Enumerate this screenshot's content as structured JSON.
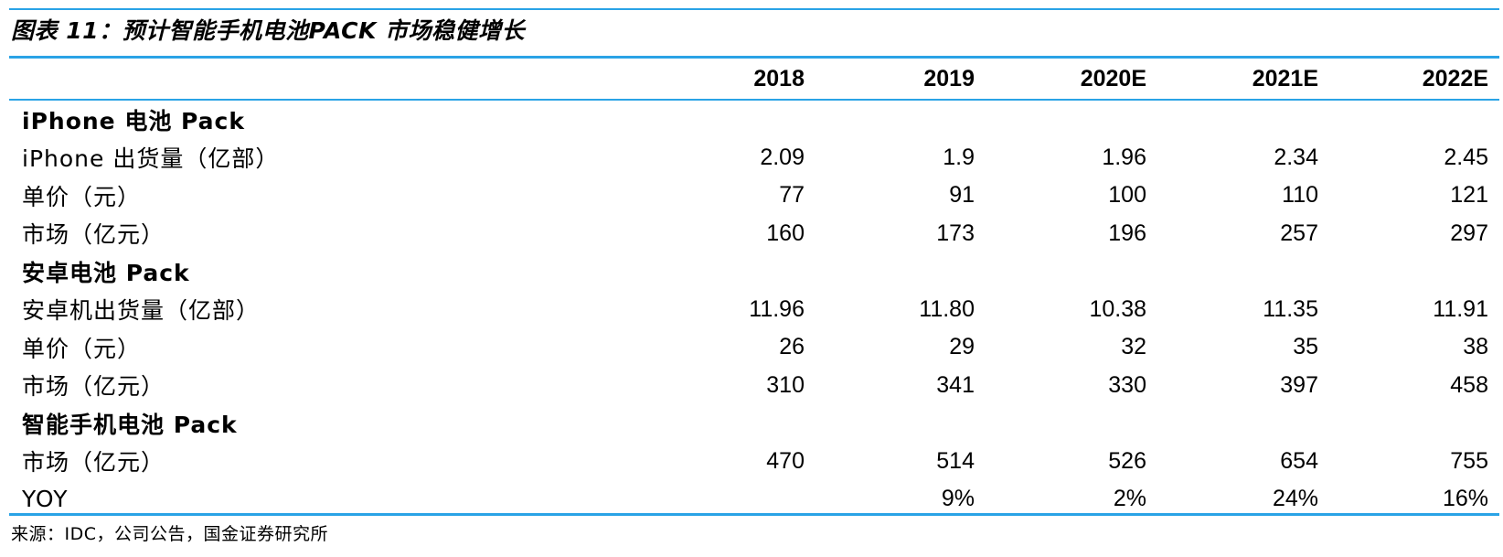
{
  "title": "图表 11：预计智能手机电池PACK 市场稳健增长",
  "table": {
    "columns": [
      "2018",
      "2019",
      "2020E",
      "2021E",
      "2022E"
    ],
    "rows": [
      {
        "type": "section",
        "label": "iPhone 电池 Pack",
        "values": [
          "",
          "",
          "",
          "",
          ""
        ]
      },
      {
        "type": "data",
        "label": "iPhone 出货量（亿部）",
        "values": [
          "2.09",
          "1.9",
          "1.96",
          "2.34",
          "2.45"
        ]
      },
      {
        "type": "data",
        "label": "单价（元）",
        "values": [
          "77",
          "91",
          "100",
          "110",
          "121"
        ]
      },
      {
        "type": "data",
        "label": "市场（亿元）",
        "values": [
          "160",
          "173",
          "196",
          "257",
          "297"
        ]
      },
      {
        "type": "section",
        "label": "安卓电池 Pack",
        "values": [
          "",
          "",
          "",
          "",
          ""
        ]
      },
      {
        "type": "data",
        "label": "安卓机出货量（亿部）",
        "values": [
          "11.96",
          "11.80",
          "10.38",
          "11.35",
          "11.91"
        ]
      },
      {
        "type": "data",
        "label": "单价（元）",
        "values": [
          "26",
          "29",
          "32",
          "35",
          "38"
        ]
      },
      {
        "type": "data",
        "label": "市场（亿元）",
        "values": [
          "310",
          "341",
          "330",
          "397",
          "458"
        ]
      },
      {
        "type": "section",
        "label": "智能手机电池 Pack",
        "values": [
          "",
          "",
          "",
          "",
          ""
        ]
      },
      {
        "type": "data",
        "label": "市场（亿元）",
        "values": [
          "470",
          "514",
          "526",
          "654",
          "755"
        ]
      },
      {
        "type": "data",
        "label": "YOY",
        "values": [
          "",
          "9%",
          "2%",
          "24%",
          "16%"
        ]
      }
    ]
  },
  "source": "来源：IDC，公司公告，国金证券研究所",
  "colors": {
    "accent_rule": "#2aa3e6",
    "text": "#000000",
    "background": "#ffffff"
  }
}
